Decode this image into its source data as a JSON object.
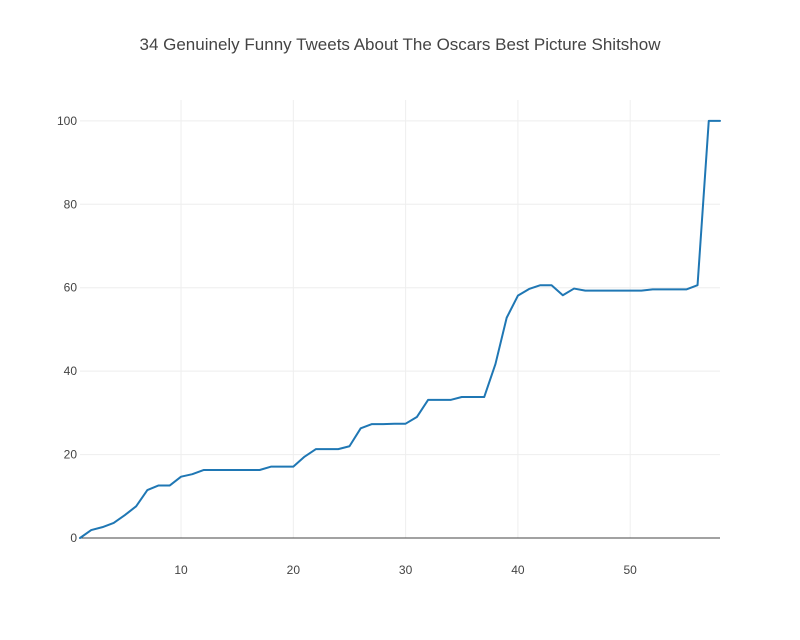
{
  "chart_data": {
    "type": "line",
    "title": "34 Genuinely Funny Tweets About The Oscars Best Picture Shitshow",
    "xlabel": "",
    "ylabel": "",
    "xlim": [
      1,
      58
    ],
    "ylim": [
      0,
      105
    ],
    "x_ticks": [
      10,
      20,
      30,
      40,
      50
    ],
    "y_ticks": [
      0,
      20,
      40,
      60,
      80,
      100
    ],
    "grid": true,
    "line_color": "#1f77b4",
    "series": [
      {
        "x": [
          1,
          2,
          3,
          4,
          5,
          6,
          7,
          8,
          9,
          10,
          11,
          12,
          13,
          14,
          15,
          16,
          17,
          18,
          19,
          20,
          21,
          22,
          23,
          24,
          25,
          26,
          27,
          28,
          29,
          30,
          31,
          32,
          33,
          34,
          35,
          36,
          37,
          38,
          39,
          40,
          41,
          42,
          43,
          44,
          45,
          46,
          47,
          48,
          49,
          50,
          51,
          52,
          53,
          54,
          55,
          56,
          57,
          58
        ],
        "y": [
          0,
          1.9,
          2.6,
          3.6,
          5.5,
          7.6,
          11.5,
          12.6,
          12.6,
          14.7,
          15.3,
          16.3,
          16.3,
          16.3,
          16.3,
          16.3,
          16.3,
          17.1,
          17.1,
          17.1,
          19.5,
          21.3,
          21.3,
          21.3,
          22.0,
          26.3,
          27.3,
          27.3,
          27.4,
          27.4,
          29.0,
          33.1,
          33.1,
          33.1,
          33.8,
          33.8,
          33.8,
          41.7,
          52.8,
          58.1,
          59.7,
          60.6,
          60.6,
          58.2,
          59.8,
          59.3,
          59.3,
          59.3,
          59.3,
          59.3,
          59.3,
          59.6,
          59.6,
          59.6,
          59.6,
          60.6,
          100,
          100
        ]
      }
    ]
  }
}
